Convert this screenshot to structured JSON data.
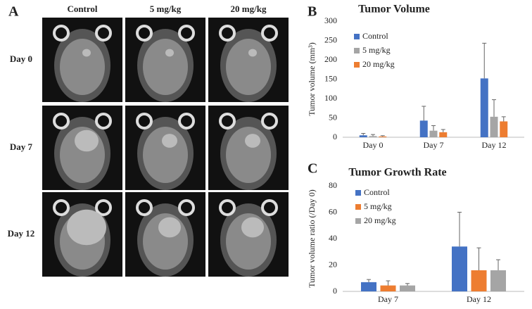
{
  "panel_a": {
    "label": "A",
    "columns": [
      "Control",
      "5 mg/kg",
      "20 mg/kg"
    ],
    "rows": [
      "Day 0",
      "Day 7",
      "Day 12"
    ]
  },
  "chart_data": [
    {
      "type": "bar",
      "panel_label": "B",
      "title": "Tumor Volume",
      "y_label": "Tumor volume (mm³)",
      "categories": [
        "Day 0",
        "Day 7",
        "Day 12"
      ],
      "series": [
        {
          "name": "Control",
          "color": "#4472c4",
          "values": [
            5,
            43,
            152
          ],
          "errors": [
            5,
            37,
            91
          ]
        },
        {
          "name": "5 mg/kg",
          "color": "#a5a5a5",
          "values": [
            3,
            17,
            53
          ],
          "errors": [
            4,
            13,
            44
          ]
        },
        {
          "name": "20 mg/kg",
          "color": "#ed7d31",
          "values": [
            2,
            13,
            41
          ],
          "errors": [
            2,
            7,
            12
          ]
        }
      ],
      "ylim": [
        0,
        300
      ],
      "yticks": [
        0,
        50,
        100,
        150,
        200,
        250,
        300
      ],
      "grid": false,
      "legend": "upper left"
    },
    {
      "type": "bar",
      "panel_label": "C",
      "title": "Tumor Growth Rate",
      "y_label": "Tumor volume ratio (/Day 0)",
      "categories": [
        "Day 7",
        "Day 12"
      ],
      "series": [
        {
          "name": "Control",
          "color": "#4472c4",
          "values": [
            7,
            34
          ],
          "errors": [
            2,
            26
          ]
        },
        {
          "name": "5 mg/kg",
          "color": "#ed7d31",
          "values": [
            4.5,
            16
          ],
          "errors": [
            3.5,
            17
          ]
        },
        {
          "name": "20 mg/kg",
          "color": "#a5a5a5",
          "values": [
            4.5,
            16
          ],
          "errors": [
            1.5,
            8
          ]
        }
      ],
      "ylim": [
        0,
        80
      ],
      "yticks": [
        0,
        20,
        40,
        60,
        80
      ],
      "grid": false,
      "legend": "upper left"
    }
  ]
}
